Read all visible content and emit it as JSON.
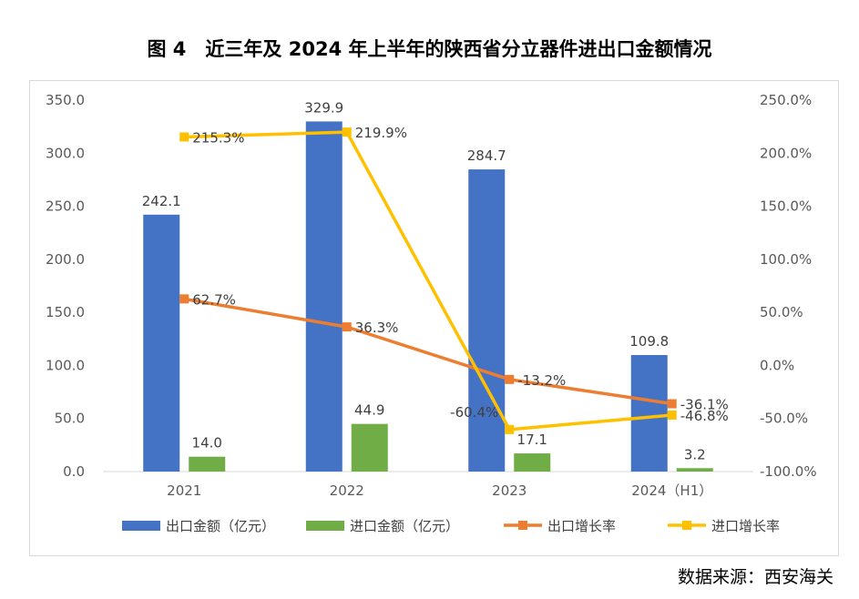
{
  "title": "图 4　近三年及 2024 年上半年的陕西省分立器件进出口金额情况",
  "source": "数据来源：西安海关",
  "chart_data": {
    "type": "bar",
    "categories": [
      "2021",
      "2022",
      "2023",
      "2024（H1）"
    ],
    "left_axis": {
      "range": [
        0,
        350
      ],
      "step": 50,
      "tick_format": "0.0"
    },
    "right_axis": {
      "range": [
        -100,
        250
      ],
      "step": 50,
      "tick_format": "0.0%"
    },
    "series": [
      {
        "name": "出口金额（亿元）",
        "type": "bar",
        "axis": "left",
        "color": "#4472C4",
        "values": [
          242.1,
          329.9,
          284.7,
          109.8
        ],
        "labels": [
          "242.1",
          "329.9",
          "284.7",
          "109.8"
        ]
      },
      {
        "name": "进口金额（亿元）",
        "type": "bar",
        "axis": "left",
        "color": "#70AD47",
        "values": [
          14.0,
          44.9,
          17.1,
          3.2
        ],
        "labels": [
          "14.0",
          "44.9",
          "17.1",
          "3.2"
        ]
      },
      {
        "name": "出口增长率",
        "type": "line",
        "axis": "right",
        "color": "#ED7D31",
        "values": [
          62.7,
          36.3,
          -13.2,
          -36.1
        ],
        "labels": [
          "62.7%",
          "36.3%",
          "-13.2%",
          "-36.1%"
        ]
      },
      {
        "name": "进口增长率",
        "type": "line",
        "axis": "right",
        "color": "#FFC000",
        "values": [
          215.3,
          219.9,
          -60.4,
          -46.8
        ],
        "labels": [
          "215.3%",
          "219.9%",
          "-60.4%",
          "-46.8%"
        ]
      }
    ],
    "legend_position": "bottom",
    "grid": false
  }
}
